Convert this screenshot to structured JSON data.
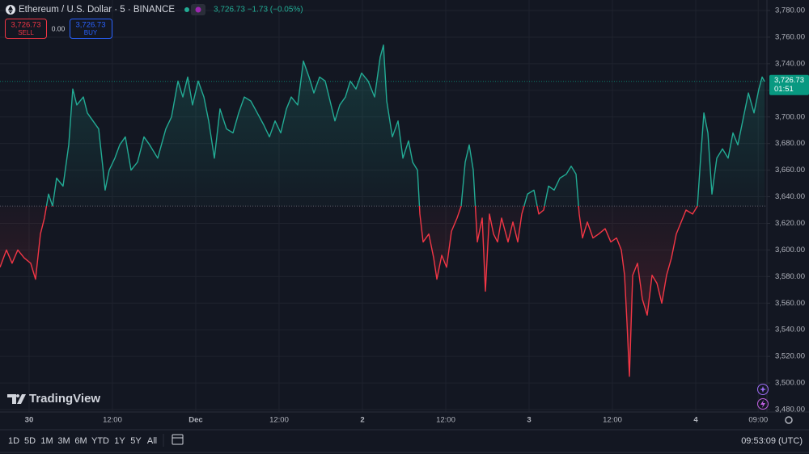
{
  "header": {
    "symbol": "Ethereum / U.S. Dollar · 5 · BINANCE",
    "quote": "3,726.73 −1.73 (−0.05%)"
  },
  "trade": {
    "sell_price": "3,726.73",
    "sell": "SELL",
    "spread": "0.00",
    "buy_price": "3,726.73",
    "buy": "BUY"
  },
  "brand": "TradingView",
  "toolbar": {
    "ranges": [
      "1D",
      "5D",
      "1M",
      "3M",
      "6M",
      "YTD",
      "1Y",
      "5Y",
      "All"
    ],
    "clock": "09:53:09 (UTC)"
  },
  "chart_data": {
    "type": "baseline",
    "baseline": 3633,
    "color_above": "#22ab94",
    "color_below": "#f23645",
    "grid": true,
    "last_price": {
      "value": 3726.73,
      "label": "3,726.73",
      "countdown": "01:51",
      "color": "#089981"
    },
    "xlim": [
      -4.19,
      106.25
    ],
    "ylim": [
      3478.2,
      3787.9
    ],
    "xticks": [
      {
        "value": 0,
        "label": "30"
      },
      {
        "value": 12,
        "label": "12:00"
      },
      {
        "value": 24,
        "label": "Dec"
      },
      {
        "value": 36,
        "label": "12:00"
      },
      {
        "value": 48,
        "label": "2"
      },
      {
        "value": 60,
        "label": "12:00"
      },
      {
        "value": 72,
        "label": "3"
      },
      {
        "value": 84,
        "label": "12:00"
      },
      {
        "value": 96,
        "label": "4"
      },
      {
        "value": 105,
        "label": "09:00"
      }
    ],
    "yticks": [
      {
        "value": 3780,
        "label": "3,780.00"
      },
      {
        "value": 3760,
        "label": "3,760.00"
      },
      {
        "value": 3740,
        "label": "3,740.00"
      },
      {
        "value": 3720,
        "label": "3,720.00"
      },
      {
        "value": 3700,
        "label": "3,700.00"
      },
      {
        "value": 3680,
        "label": "3,680.00"
      },
      {
        "value": 3660,
        "label": "3,660.00"
      },
      {
        "value": 3640,
        "label": "3,640.00"
      },
      {
        "value": 3620,
        "label": "3,620.00"
      },
      {
        "value": 3600,
        "label": "3,600.00"
      },
      {
        "value": 3580,
        "label": "3,580.00"
      },
      {
        "value": 3560,
        "label": "3,560.00"
      },
      {
        "value": 3540,
        "label": "3,540.00"
      },
      {
        "value": 3520,
        "label": "3,520.00"
      },
      {
        "value": 3500,
        "label": "3,500.00"
      },
      {
        "value": 3480,
        "label": "3,480.00"
      }
    ],
    "x": [
      -4.19,
      -3.26,
      -2.45,
      -1.63,
      -0.7,
      0.23,
      0.93,
      1.63,
      2.21,
      2.8,
      3.38,
      3.96,
      4.89,
      5.71,
      6.29,
      6.87,
      7.81,
      8.39,
      9.2,
      10.02,
      10.6,
      10.95,
      11.53,
      12.35,
      13.05,
      13.86,
      14.68,
      15.61,
      16.54,
      17.36,
      18.52,
      19.69,
      20.51,
      21.44,
      22.14,
      22.84,
      23.53,
      24.35,
      25.17,
      25.86,
      26.68,
      27.49,
      28.43,
      29.36,
      30.18,
      30.99,
      31.92,
      32.86,
      33.79,
      34.61,
      35.42,
      36.24,
      37.05,
      37.75,
      38.68,
      39.5,
      40.31,
      41.01,
      41.83,
      42.64,
      43.34,
      44.04,
      44.74,
      45.55,
      46.25,
      47.07,
      47.88,
      48.82,
      49.75,
      50.56,
      51.03,
      51.5,
      52.31,
      53.13,
      53.83,
      54.64,
      55.23,
      55.93,
      56.27,
      56.74,
      57.56,
      58.26,
      58.72,
      59.42,
      60.12,
      60.82,
      61.63,
      62.22,
      62.8,
      63.38,
      63.96,
      64.55,
      65.25,
      65.71,
      66.29,
      66.88,
      67.46,
      68.04,
      68.97,
      69.67,
      70.37,
      70.95,
      71.77,
      72.7,
      73.4,
      74.1,
      74.8,
      75.61,
      76.43,
      77.36,
      78.06,
      78.76,
      79.22,
      79.69,
      80.39,
      81.2,
      82.02,
      82.95,
      83.77,
      84.59,
      85.28,
      85.75,
      86.1,
      86.45,
      86.92,
      87.61,
      88.31,
      89.01,
      89.71,
      90.41,
      91.11,
      91.8,
      92.5,
      93.2,
      93.9,
      94.6,
      95.54,
      96.24,
      96.7,
      97.17,
      97.75,
      98.33,
      99.03,
      99.85,
      100.66,
      101.36,
      102.06,
      102.76,
      103.58,
      104.39,
      105.09,
      105.56,
      105.91
    ],
    "values": [
      3587,
      3600,
      3590,
      3600,
      3594,
      3590,
      3578,
      3612,
      3624,
      3642,
      3633,
      3654,
      3648,
      3679,
      3721,
      3709,
      3715,
      3703,
      3697,
      3691,
      3663,
      3645,
      3660,
      3669,
      3679,
      3685,
      3660,
      3666,
      3685,
      3679,
      3669,
      3691,
      3700,
      3727,
      3715,
      3730,
      3709,
      3727,
      3715,
      3697,
      3669,
      3706,
      3691,
      3688,
      3703,
      3715,
      3712,
      3703,
      3694,
      3685,
      3697,
      3688,
      3706,
      3715,
      3709,
      3742,
      3730,
      3718,
      3730,
      3727,
      3712,
      3697,
      3709,
      3715,
      3727,
      3721,
      3733,
      3727,
      3715,
      3745,
      3754,
      3712,
      3685,
      3697,
      3669,
      3682,
      3666,
      3660,
      3627,
      3606,
      3612,
      3594,
      3578,
      3596,
      3587,
      3614,
      3624,
      3633,
      3666,
      3679,
      3660,
      3606,
      3624,
      3569,
      3627,
      3612,
      3606,
      3624,
      3606,
      3621,
      3606,
      3627,
      3642,
      3645,
      3627,
      3630,
      3648,
      3645,
      3654,
      3657,
      3663,
      3657,
      3627,
      3609,
      3621,
      3609,
      3612,
      3616,
      3606,
      3609,
      3600,
      3581,
      3545,
      3505,
      3581,
      3590,
      3563,
      3551,
      3581,
      3575,
      3560,
      3581,
      3594,
      3612,
      3621,
      3630,
      3627,
      3633,
      3669,
      3703,
      3688,
      3642,
      3669,
      3676,
      3669,
      3688,
      3679,
      3697,
      3718,
      3703,
      3721,
      3730,
      3726.73
    ]
  }
}
